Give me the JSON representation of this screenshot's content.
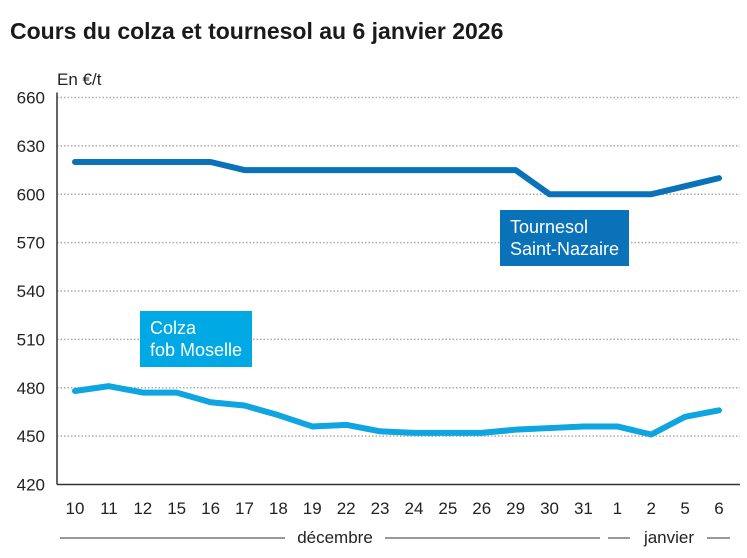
{
  "chart_data": {
    "type": "line",
    "title": "Cours du colza et tournesol au 6 janvier 2026",
    "ylabel": "En €/t",
    "ylim": [
      420,
      660
    ],
    "yticks": [
      420,
      450,
      480,
      510,
      540,
      570,
      600,
      630,
      660
    ],
    "grid": true,
    "categories": [
      "10",
      "11",
      "12",
      "15",
      "16",
      "17",
      "18",
      "19",
      "22",
      "23",
      "24",
      "25",
      "26",
      "29",
      "30",
      "31",
      "1",
      "2",
      "5",
      "6"
    ],
    "month_labels": [
      {
        "label": "décembre"
      },
      {
        "label": "janvier"
      }
    ],
    "series": [
      {
        "name": "Tournesol Saint-Nazaire",
        "label_lines": [
          "Tournesol",
          "Saint-Nazaire"
        ],
        "color": "#0a72b8",
        "values": [
          620,
          620,
          620,
          620,
          620,
          615,
          615,
          615,
          615,
          615,
          615,
          615,
          615,
          615,
          600,
          600,
          600,
          600,
          605,
          610
        ]
      },
      {
        "name": "Colza fob Moselle",
        "label_lines": [
          "Colza",
          "fob Moselle"
        ],
        "color": "#0ea5e0",
        "values": [
          478,
          481,
          477,
          477,
          471,
          469,
          463,
          456,
          457,
          453,
          452,
          452,
          452,
          454,
          455,
          456,
          456,
          451,
          462,
          466
        ]
      }
    ]
  }
}
